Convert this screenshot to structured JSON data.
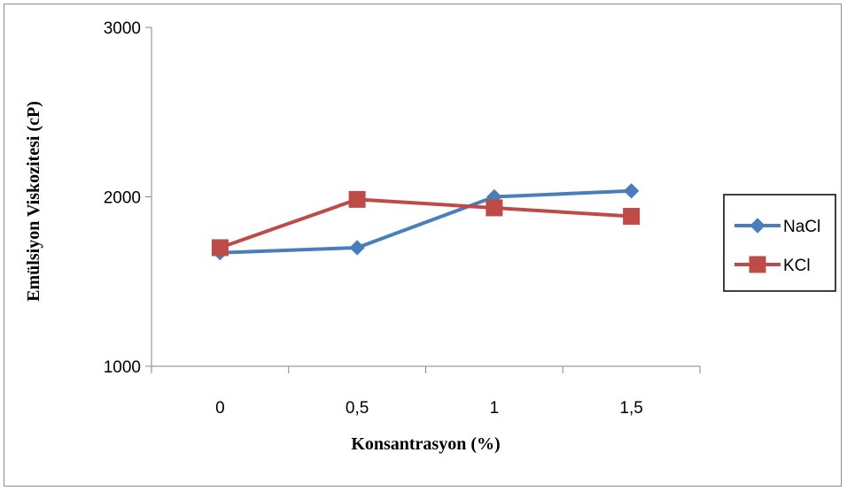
{
  "chart_data": {
    "type": "line",
    "categories": [
      "0",
      "0,5",
      "1",
      "1,5"
    ],
    "series": [
      {
        "name": "NaCl",
        "values": [
          1670,
          1700,
          2000,
          2035
        ],
        "color": "#4a7ebb",
        "marker": "diamond"
      },
      {
        "name": "KCl",
        "values": [
          1700,
          1985,
          1935,
          1885
        ],
        "color": "#be4b48",
        "marker": "square"
      }
    ],
    "ylim": [
      1000,
      3000
    ],
    "yticks": [
      1000,
      2000,
      3000
    ],
    "xlabel": "Konsantrasyon (%)",
    "ylabel": "Emülsiyon Viskozitesi (cP)",
    "legend": "right",
    "grid": false
  }
}
